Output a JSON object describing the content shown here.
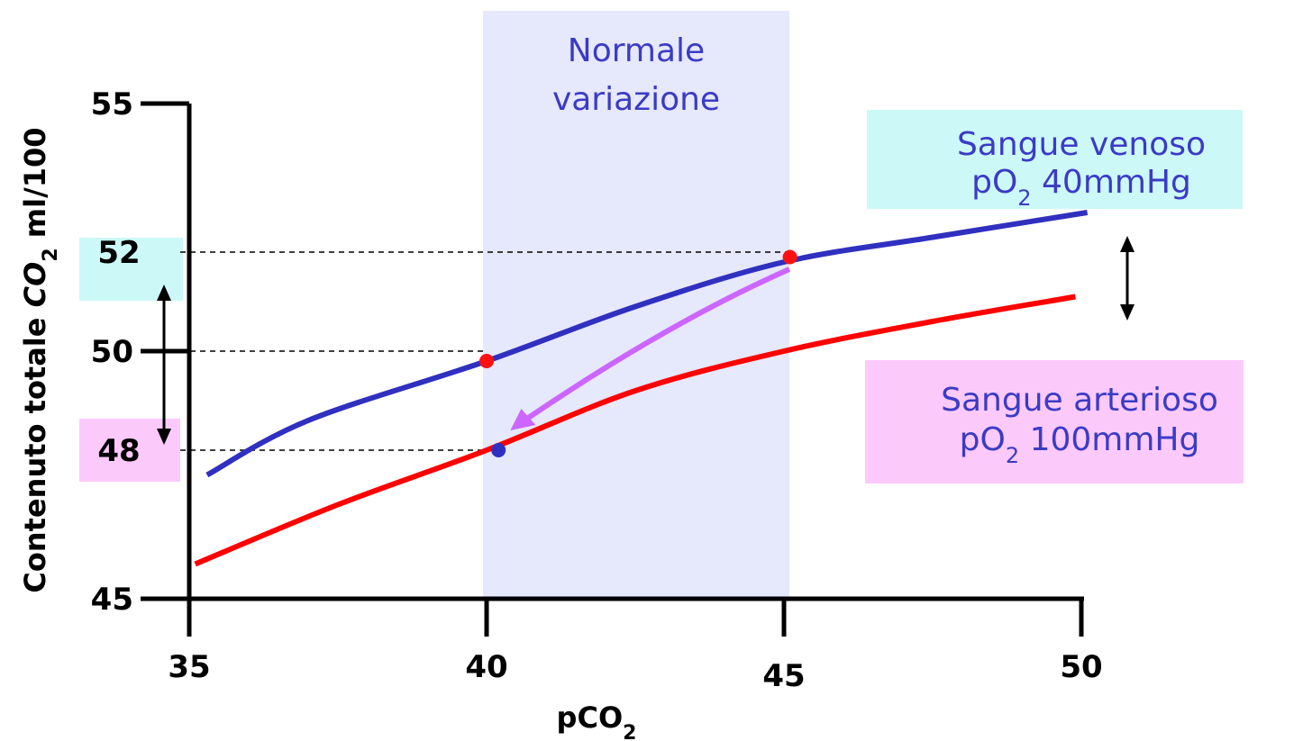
{
  "chart_data": {
    "type": "line",
    "xlabel": "pCO",
    "xlabel_sub": "2",
    "ylabel_pre": "Contenuto totale ",
    "ylabel_co": "CO",
    "ylabel_sub": "2",
    "ylabel_post": " ml/100",
    "xlim": [
      35,
      50
    ],
    "ylim": [
      45,
      55
    ],
    "x_ticks": [
      35,
      40,
      45,
      50
    ],
    "y_ticks": [
      45,
      50,
      55
    ],
    "y_marked_labels": [
      52,
      48
    ],
    "normal_range": {
      "label_line1": "Normale",
      "label_line2": "variazione",
      "x_from": 40,
      "x_to": 45
    },
    "series": [
      {
        "name": "Sangue venoso pO2 40mmHg",
        "color": "#3030c0",
        "points": [
          [
            35.3,
            47.5
          ],
          [
            37,
            48.6
          ],
          [
            40,
            49.8
          ],
          [
            42.5,
            50.9
          ],
          [
            45,
            51.8
          ],
          [
            47.5,
            52.3
          ],
          [
            50.1,
            52.8
          ]
        ]
      },
      {
        "name": "Sangue arterioso pO2 100mmHg",
        "color": "#ff0000",
        "points": [
          [
            35.1,
            45.7
          ],
          [
            37.5,
            46.9
          ],
          [
            40,
            48.0
          ],
          [
            42.5,
            49.2
          ],
          [
            45,
            50.0
          ],
          [
            47.5,
            50.6
          ],
          [
            49.9,
            51.1
          ]
        ]
      }
    ],
    "annotations": {
      "venous_box": {
        "line1": "Sangue venoso",
        "line2_pre": "pO",
        "line2_sub": "2",
        "line2_post": " 40mmHg",
        "background": "#ccf8f8"
      },
      "arterial_box": {
        "line1": "Sangue arterioso",
        "line2_pre": "pO",
        "line2_sub": "2",
        "line2_post": " 100mmHg",
        "background": "#fcc9fb"
      },
      "points": [
        {
          "x": 45.1,
          "y": 51.9,
          "color": "#ff1010"
        },
        {
          "x": 40,
          "y": 49.8,
          "color": "#ff1010"
        },
        {
          "x": 40.2,
          "y": 48.0,
          "color": "#3030c0"
        }
      ],
      "reference_lines": [
        52,
        50,
        48
      ],
      "transition_arrow": {
        "from": [
          45,
          51.8
        ],
        "to": [
          40.4,
          48.4
        ],
        "color": "#cc66ff"
      }
    }
  }
}
